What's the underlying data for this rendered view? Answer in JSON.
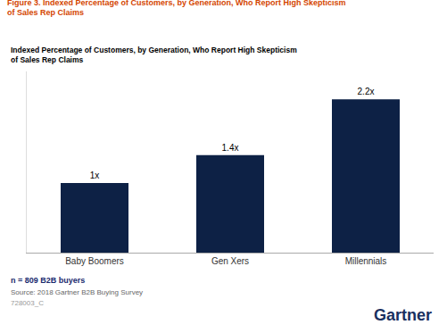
{
  "chart_data": {
    "type": "bar",
    "title": [
      "Figure 3. Indexed Percentage of Customers, by Generation, Who Report High Skepticism",
      "of Sales Rep Claims"
    ],
    "subtitle": [
      "Indexed Percentage of Customers, by Generation, Who Report High Skepticism",
      "of Sales Rep Claims"
    ],
    "categories": [
      "Baby Boomers",
      "Gen Xers",
      "Millennials"
    ],
    "values": [
      1.0,
      1.4,
      2.2
    ],
    "value_labels": [
      "1x",
      "1.4x",
      "2.2x"
    ],
    "data_labels": true,
    "color": "#0d2145",
    "ylim": [
      0,
      2.6
    ],
    "grid": false,
    "tick_labels": "x",
    "annotations": [
      "n = 809 B2B buyers",
      "Source: 2018 Gartner B2B Buying Survey",
      "728003_C",
      "Gartner"
    ]
  }
}
